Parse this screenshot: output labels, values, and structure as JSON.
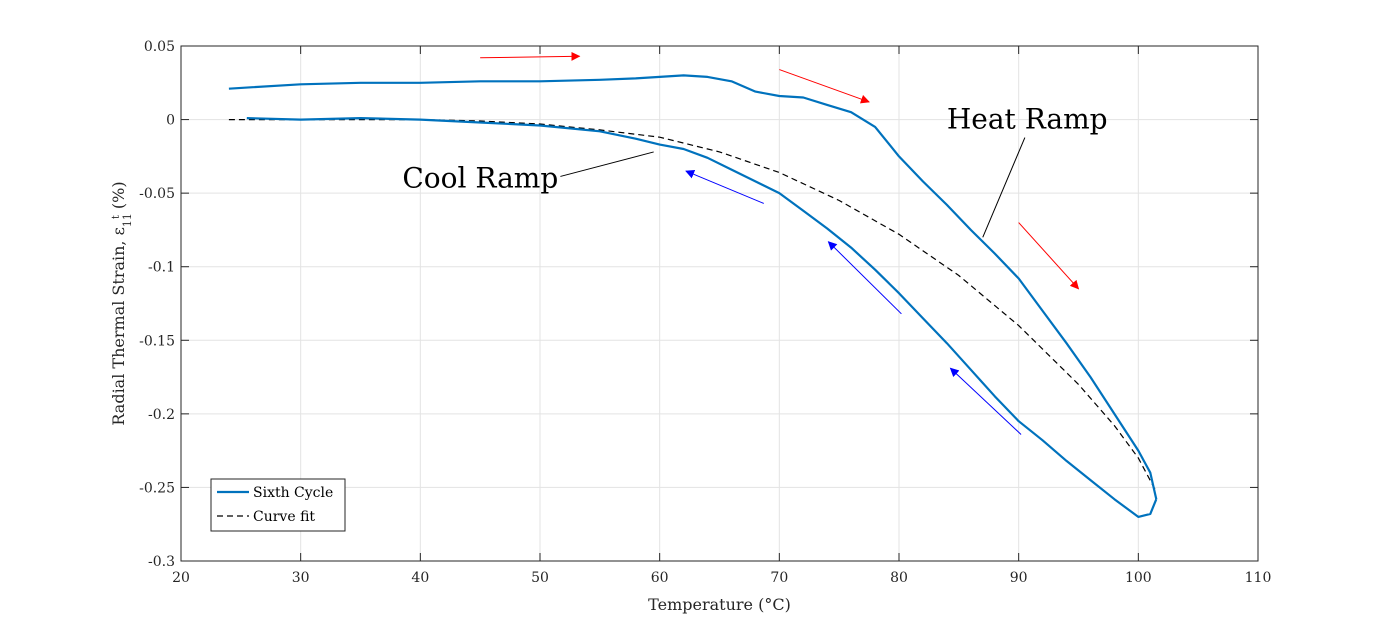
{
  "chart_data": {
    "type": "line",
    "title": "",
    "xlabel": "Temperature (°C)",
    "ylabel": "Radial Thermal Strain, ε",
    "ylabel_sub": "11",
    "ylabel_sup": "t",
    "ylabel_unit": "(%)",
    "xlim": [
      20,
      110
    ],
    "ylim": [
      -0.3,
      0.05
    ],
    "xticks": [
      "20",
      "30",
      "40",
      "50",
      "60",
      "70",
      "80",
      "90",
      "100",
      "110"
    ],
    "yticks": [
      "0.05",
      "0",
      "-0.05",
      "-0.1",
      "-0.15",
      "-0.2",
      "-0.25",
      "-0.3"
    ],
    "grid": true,
    "legend_position": "bottom-left",
    "colors": {
      "series": "#0072BD",
      "fit": "#000000",
      "heat_arrow": "#FF0000",
      "cool_arrow": "#0000FF"
    },
    "series": [
      {
        "name": "Sixth Cycle",
        "style": "solid",
        "heat_ramp": {
          "x": [
            24,
            26,
            30,
            35,
            40,
            45,
            50,
            55,
            58,
            60,
            62,
            64,
            66,
            68,
            70,
            72,
            74,
            76,
            78,
            80,
            82,
            84,
            86,
            88,
            90,
            92,
            94,
            96,
            98,
            100,
            101,
            101.5
          ],
          "y": [
            0.021,
            0.022,
            0.024,
            0.025,
            0.025,
            0.026,
            0.026,
            0.027,
            0.028,
            0.029,
            0.03,
            0.029,
            0.026,
            0.019,
            0.016,
            0.015,
            0.01,
            0.005,
            -0.005,
            -0.025,
            -0.042,
            -0.058,
            -0.075,
            -0.091,
            -0.108,
            -0.13,
            -0.152,
            -0.175,
            -0.2,
            -0.225,
            -0.24,
            -0.258
          ]
        },
        "cool_ramp": {
          "x": [
            101.5,
            101,
            100,
            98,
            96,
            94,
            92,
            90,
            88,
            86,
            84,
            82,
            80,
            78,
            76,
            74,
            72,
            70,
            68,
            66,
            64,
            62,
            60,
            58,
            55,
            50,
            45,
            40,
            35,
            30,
            25.5
          ],
          "y": [
            -0.258,
            -0.268,
            -0.27,
            -0.258,
            -0.245,
            -0.232,
            -0.218,
            -0.205,
            -0.188,
            -0.17,
            -0.152,
            -0.135,
            -0.118,
            -0.102,
            -0.087,
            -0.074,
            -0.062,
            -0.05,
            -0.042,
            -0.034,
            -0.026,
            -0.02,
            -0.017,
            -0.013,
            -0.008,
            -0.004,
            -0.002,
            0.0,
            0.001,
            0.0,
            0.001
          ]
        }
      },
      {
        "name": "Curve fit",
        "style": "dashed",
        "x": [
          24,
          30,
          35,
          40,
          45,
          50,
          55,
          60,
          65,
          70,
          75,
          80,
          85,
          90,
          95,
          98,
          100,
          101.5
        ],
        "y": [
          0,
          0,
          0,
          0,
          -0.001,
          -0.003,
          -0.007,
          -0.012,
          -0.022,
          -0.036,
          -0.055,
          -0.078,
          -0.106,
          -0.14,
          -0.18,
          -0.208,
          -0.23,
          -0.253
        ]
      }
    ],
    "annotations": [
      {
        "text": "Heat Ramp",
        "x": 84,
        "y": 0.0,
        "pointer_to": [
          87,
          -0.08
        ]
      },
      {
        "text": "Cool Ramp",
        "x": 38.5,
        "y": -0.04,
        "pointer_to": [
          59.5,
          -0.022
        ]
      }
    ],
    "arrows": [
      {
        "type": "heat",
        "from": [
          45,
          0.042
        ],
        "to": [
          53.3,
          0.043
        ]
      },
      {
        "type": "heat",
        "from": [
          70,
          0.034
        ],
        "to": [
          77.5,
          0.012
        ]
      },
      {
        "type": "heat",
        "from": [
          90,
          -0.07
        ],
        "to": [
          95,
          -0.115
        ]
      },
      {
        "type": "cool",
        "from": [
          68.7,
          -0.057
        ],
        "to": [
          62.2,
          -0.035
        ]
      },
      {
        "type": "cool",
        "from": [
          80.2,
          -0.132
        ],
        "to": [
          74.1,
          -0.083
        ]
      },
      {
        "type": "cool",
        "from": [
          90.2,
          -0.214
        ],
        "to": [
          84.3,
          -0.169
        ]
      }
    ]
  }
}
